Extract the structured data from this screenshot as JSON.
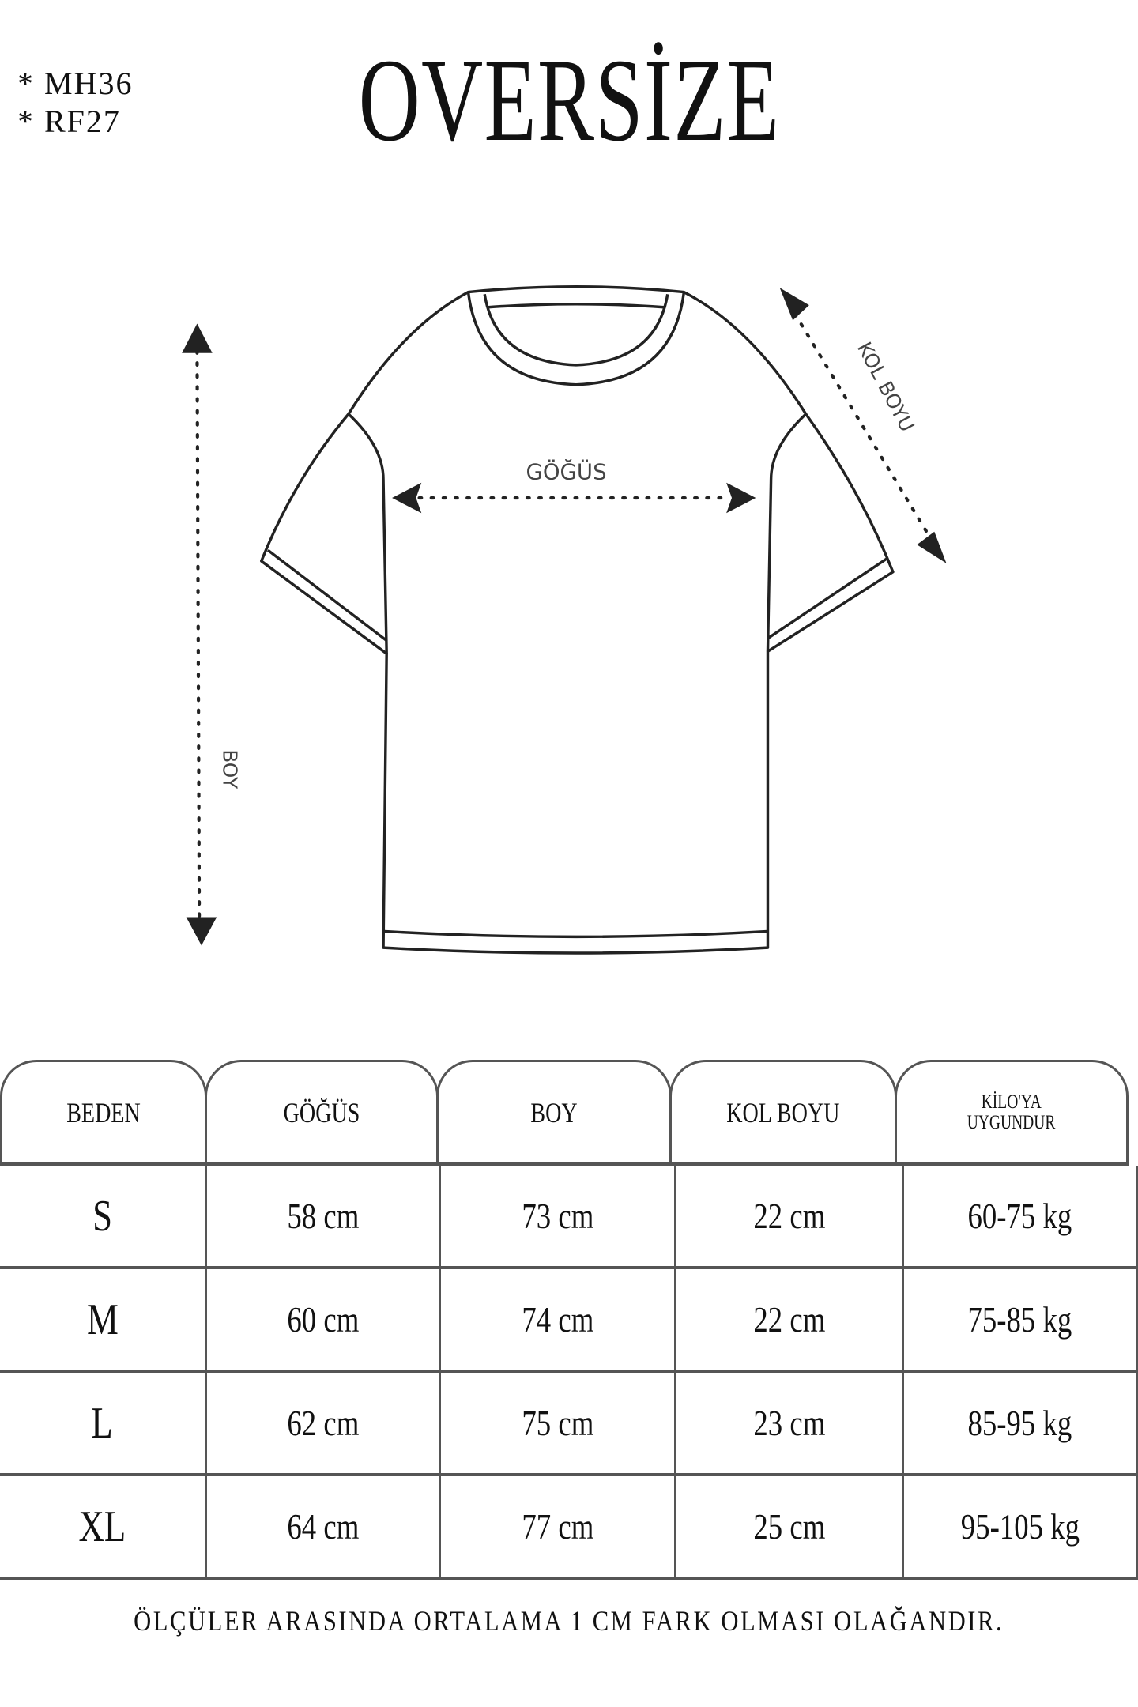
{
  "codes": [
    "* MH36",
    "* RF27"
  ],
  "title": "OVERSİZE",
  "diagram": {
    "chest_label": "GÖĞÜS",
    "length_label": "BOY",
    "sleeve_label": "KOL BOYU",
    "line_color": "#222222"
  },
  "table": {
    "headers": [
      "BEDEN",
      "GÖĞÜS",
      "BOY",
      "KOL BOYU",
      "KİLO'YA",
      "UYGUNDUR"
    ],
    "rows": [
      {
        "size": "S",
        "chest": "58 cm",
        "length": "73 cm",
        "sleeve": "22  cm",
        "weight": "60-75 kg"
      },
      {
        "size": "M",
        "chest": "60 cm",
        "length": "74 cm",
        "sleeve": "22 cm",
        "weight": "75-85 kg"
      },
      {
        "size": "L",
        "chest": "62 cm",
        "length": "75 cm",
        "sleeve": "23 cm",
        "weight": "85-95 kg"
      },
      {
        "size": "XL",
        "chest": "64 cm",
        "length": "77 cm",
        "sleeve": "25 cm",
        "weight": "95-105 kg"
      }
    ]
  },
  "footer": "ÖLÇÜLER ARASINDA ORTALAMA 1 CM FARK OLMASI OLAĞANDIR."
}
